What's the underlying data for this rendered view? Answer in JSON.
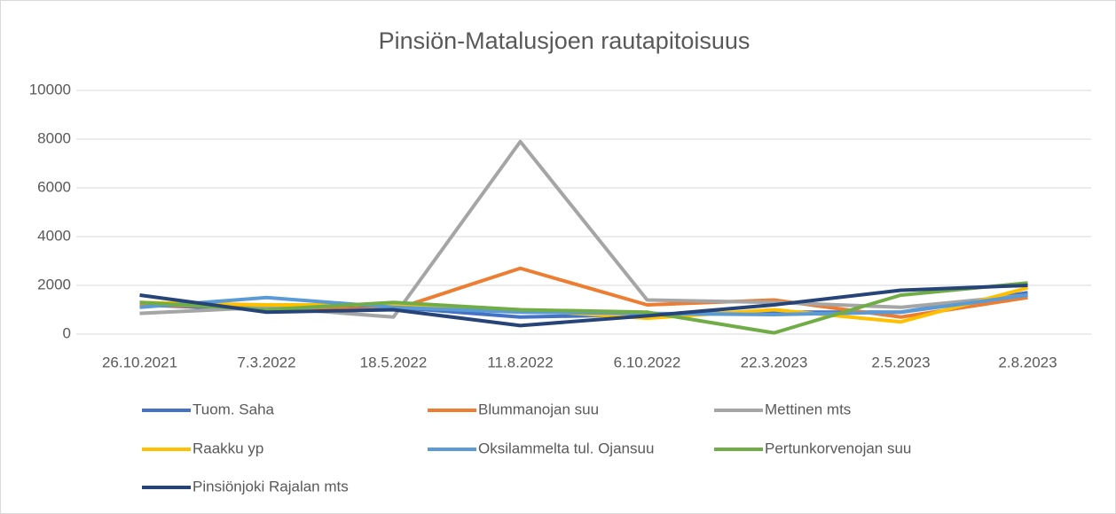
{
  "chart_data": {
    "type": "line",
    "title": "Pinsiön-Matalusjoen rautapitoisuus",
    "categories": [
      "26.10.2021",
      "7.3.2022",
      "18.5.2022",
      "11.8.2022",
      "6.10.2022",
      "22.3.2023",
      "2.5.2023",
      "2.8.2023"
    ],
    "series": [
      {
        "name": "Tuom. Saha",
        "color": "#4472c4",
        "values": [
          1200,
          1000,
          1100,
          700,
          800,
          900,
          900,
          1700
        ]
      },
      {
        "name": "Blummanojan suu",
        "color": "#ed7d31",
        "values": [
          1200,
          1100,
          1000,
          2700,
          1200,
          1400,
          700,
          1500
        ]
      },
      {
        "name": "Mettinen mts",
        "color": "#a5a5a5",
        "values": [
          850,
          1100,
          700,
          7900,
          1400,
          1300,
          1100,
          1600
        ]
      },
      {
        "name": "Raakku yp",
        "color": "#ffc000",
        "values": [
          1300,
          1200,
          1200,
          1000,
          650,
          1000,
          500,
          1900
        ]
      },
      {
        "name": "Oksilammelta tul. Ojansuu",
        "color": "#5b9bd5",
        "values": [
          1100,
          1500,
          1100,
          900,
          850,
          800,
          900,
          1600
        ]
      },
      {
        "name": "Pertunkorvenojan suu",
        "color": "#70ad47",
        "values": [
          1300,
          1000,
          1300,
          1000,
          900,
          50,
          1600,
          2100
        ]
      },
      {
        "name": "Pinsiönjoki Rajalan mts",
        "color": "#264478",
        "values": [
          1600,
          900,
          1000,
          350,
          750,
          1200,
          1800,
          2000
        ]
      }
    ],
    "ylim": [
      0,
      10000
    ],
    "yticks": [
      0,
      2000,
      4000,
      6000,
      8000,
      10000
    ],
    "grid": true,
    "legend": "bottom"
  }
}
